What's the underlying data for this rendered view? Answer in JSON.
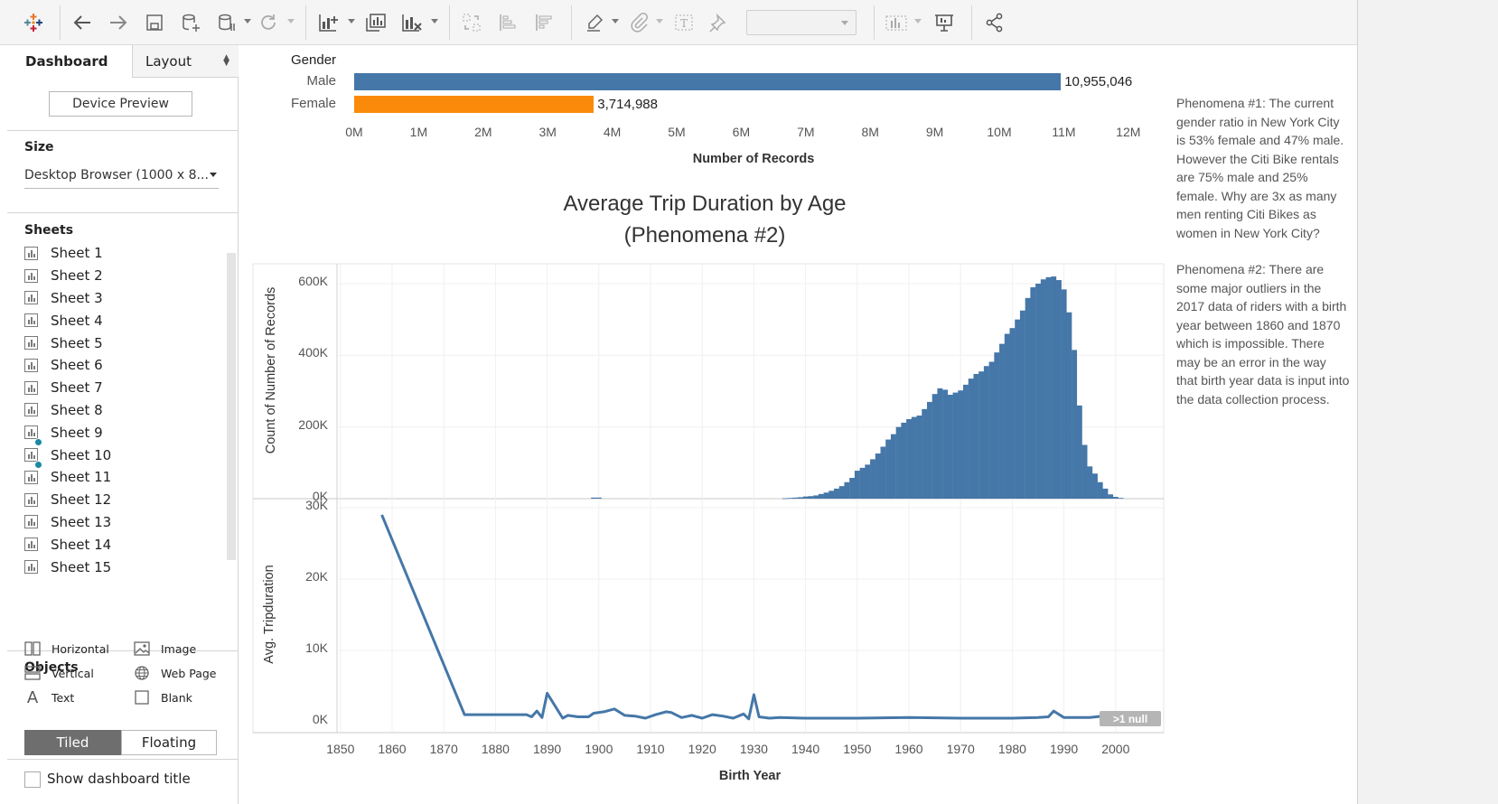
{
  "toolbar": {
    "icons": [
      "tableau-logo-icon",
      "back-icon",
      "forward-icon",
      "save-icon",
      "new-datasource-icon",
      "pause-updates-icon",
      "refresh-icon",
      "new-worksheet-icon",
      "duplicate-sheet-icon",
      "clear-sheet-icon",
      "swap-icon",
      "sort-ascending-icon",
      "sort-descending-icon",
      "highlight-icon",
      "group-icon",
      "label-icon",
      "fix-axes-icon",
      "show-me-icon",
      "presentation-icon",
      "share-icon"
    ],
    "fit_value": ""
  },
  "left_panel": {
    "tab_dashboard": "Dashboard",
    "tab_layout": "Layout",
    "device_preview": "Device Preview",
    "size_heading": "Size",
    "size_value": "Desktop Browser (1000 x 8...",
    "sheets_heading": "Sheets",
    "sheets": [
      {
        "label": "Sheet 1",
        "checked": false
      },
      {
        "label": "Sheet 2",
        "checked": false
      },
      {
        "label": "Sheet 3",
        "checked": false
      },
      {
        "label": "Sheet 4",
        "checked": false
      },
      {
        "label": "Sheet 5",
        "checked": false
      },
      {
        "label": "Sheet 6",
        "checked": false
      },
      {
        "label": "Sheet 7",
        "checked": false
      },
      {
        "label": "Sheet 8",
        "checked": false
      },
      {
        "label": "Sheet 9",
        "checked": true
      },
      {
        "label": "Sheet 10",
        "checked": true
      },
      {
        "label": "Sheet 11",
        "checked": false
      },
      {
        "label": "Sheet 12",
        "checked": false
      },
      {
        "label": "Sheet 13",
        "checked": false
      },
      {
        "label": "Sheet 14",
        "checked": false
      },
      {
        "label": "Sheet 15",
        "checked": false
      }
    ],
    "objects_heading": "Objects",
    "objects": {
      "horizontal": "Horizontal",
      "image": "Image",
      "vertical": "Vertical",
      "web_page": "Web Page",
      "text": "Text",
      "blank": "Blank"
    },
    "tiled": "Tiled",
    "floating": "Floating",
    "show_title": "Show dashboard title"
  },
  "gender_chart": {
    "row_header": "Gender",
    "xlabel": "Number of Records",
    "ticks": [
      "0M",
      "1M",
      "2M",
      "3M",
      "4M",
      "5M",
      "6M",
      "7M",
      "8M",
      "9M",
      "10M",
      "11M",
      "12M"
    ],
    "male_label": "Male",
    "female_label": "Female",
    "male_value_label": "10,955,046",
    "female_value_label": "3,714,988"
  },
  "main_chart": {
    "title_line1": "Average Trip Duration by Age",
    "title_line2": "(Phenomena #2)",
    "top_ylabel": "Count of Number of Records",
    "top_yticks": [
      "600K",
      "400K",
      "200K",
      "0K"
    ],
    "bottom_ylabel": "Avg. Tripduration",
    "bottom_yticks": [
      "30K",
      "20K",
      "10K",
      "0K"
    ],
    "xticks": [
      "1850",
      "1860",
      "1870",
      "1880",
      "1890",
      "1900",
      "1910",
      "1920",
      "1930",
      "1940",
      "1950",
      "1960",
      "1970",
      "1980",
      "1990",
      "2000"
    ],
    "xlabel": "Birth Year",
    "null_badge": ">1 null"
  },
  "text_panel": {
    "p1": "Phenomena #1:  The current gender ratio in New York City is 53% female and 47% male. However the Citi Bike rentals are 75% male and 25% female. Why are 3x as many men renting Citi Bikes as women in New York City?",
    "p2": "Phenomena #2: There are some major outliers in the 2017 data of riders with a birth year between 1860 and 1870 which is impossible. There may be an error in the way that birth year data is input into the data collection process."
  },
  "colors": {
    "male": "#4577a8",
    "female": "#fb8a0b",
    "histogram": "#4577a8",
    "line": "#4577a8"
  },
  "chart_data": [
    {
      "type": "bar",
      "orientation": "horizontal",
      "categories": [
        "Male",
        "Female"
      ],
      "values": [
        10955046,
        3714988
      ],
      "xlabel": "Number of Records",
      "ylabel": "Gender",
      "xlim": [
        0,
        12000000
      ]
    },
    {
      "type": "bar",
      "title": "Average Trip Duration by Age (Phenomena #2)",
      "xlabel": "Birth Year",
      "ylabel": "Count of Number of Records",
      "ylim": [
        0,
        620000
      ],
      "x": [
        1899,
        1900,
        1936,
        1937,
        1938,
        1939,
        1940,
        1941,
        1942,
        1943,
        1944,
        1945,
        1946,
        1947,
        1948,
        1949,
        1950,
        1951,
        1952,
        1953,
        1954,
        1955,
        1956,
        1957,
        1958,
        1959,
        1960,
        1961,
        1962,
        1963,
        1964,
        1965,
        1966,
        1967,
        1968,
        1969,
        1970,
        1971,
        1972,
        1973,
        1974,
        1975,
        1976,
        1977,
        1978,
        1979,
        1980,
        1981,
        1982,
        1983,
        1984,
        1985,
        1986,
        1987,
        1988,
        1989,
        1990,
        1991,
        1992,
        1993,
        1994,
        1995,
        1996,
        1997,
        1998,
        1999,
        2000,
        2001
      ],
      "values": [
        3000,
        3000,
        1000,
        2000,
        3000,
        4000,
        6000,
        7000,
        9000,
        13000,
        17000,
        22000,
        28000,
        35000,
        46000,
        58000,
        78000,
        86000,
        95000,
        110000,
        126000,
        145000,
        165000,
        180000,
        200000,
        212000,
        222000,
        228000,
        232000,
        250000,
        270000,
        292000,
        308000,
        304000,
        290000,
        296000,
        302000,
        318000,
        335000,
        348000,
        355000,
        370000,
        382000,
        408000,
        432000,
        460000,
        476000,
        500000,
        525000,
        560000,
        590000,
        600000,
        612000,
        618000,
        620000,
        610000,
        584000,
        520000,
        415000,
        260000,
        150000,
        90000,
        70000,
        46000,
        28000,
        12000,
        5000,
        2000
      ]
    },
    {
      "type": "line",
      "xlabel": "Birth Year",
      "ylabel": "Avg. Tripduration",
      "ylim": [
        0,
        30000
      ],
      "x": [
        1858,
        1874,
        1883,
        1886,
        1887,
        1888,
        1889,
        1890,
        1893,
        1894,
        1896,
        1898,
        1899,
        1901,
        1903,
        1905,
        1907,
        1909,
        1911,
        1913,
        1914,
        1916,
        1918,
        1920,
        1922,
        1924,
        1926,
        1928,
        1929,
        1930,
        1931,
        1933,
        1935,
        1940,
        1950,
        1960,
        1970,
        1980,
        1985,
        1987,
        1988,
        1990,
        1995,
        2000,
        2001
      ],
      "values": [
        29000,
        1000,
        1000,
        1000,
        700,
        1500,
        600,
        4000,
        500,
        900,
        700,
        700,
        1200,
        1400,
        1800,
        900,
        800,
        500,
        1000,
        1400,
        1300,
        600,
        900,
        500,
        1000,
        800,
        500,
        1100,
        400,
        3800,
        700,
        500,
        600,
        500,
        500,
        600,
        500,
        500,
        600,
        700,
        1500,
        600,
        600,
        1000,
        1000
      ]
    }
  ]
}
